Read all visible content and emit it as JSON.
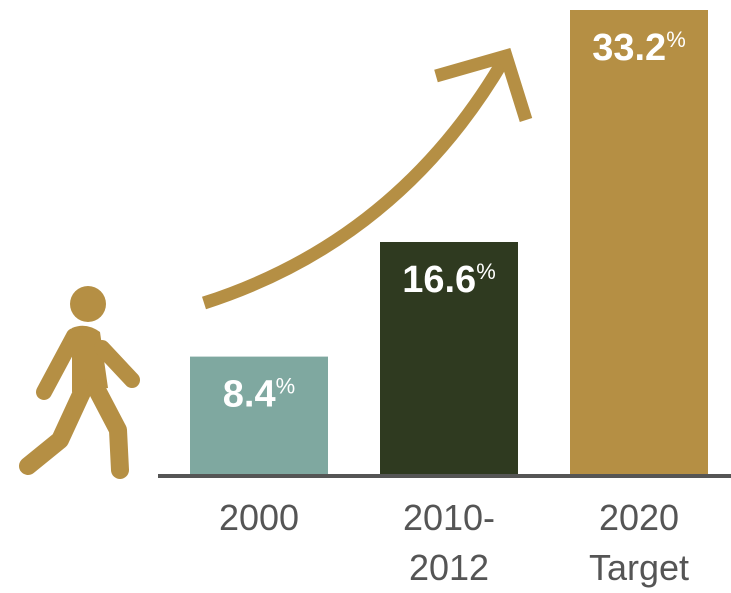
{
  "chart_data": {
    "type": "bar",
    "categories": [
      [
        "2000"
      ],
      [
        "2010-",
        "2012"
      ],
      [
        "2020",
        "Target"
      ]
    ],
    "values": [
      8.4,
      16.6,
      33.2
    ],
    "value_labels": [
      "8.4",
      "16.6",
      "33.2"
    ],
    "unit": "%",
    "colors": [
      "#7fa8a0",
      "#2f3a20",
      "#b58f44"
    ],
    "title": "",
    "xlabel": "",
    "ylabel": "",
    "ylim": [
      0,
      33.2
    ],
    "grid": false,
    "legend": "none"
  },
  "decorations": {
    "icon_color": "#b58f44",
    "axis_color": "#555555",
    "icons": [
      "walking-person-icon",
      "growth-arrow-icon"
    ]
  }
}
